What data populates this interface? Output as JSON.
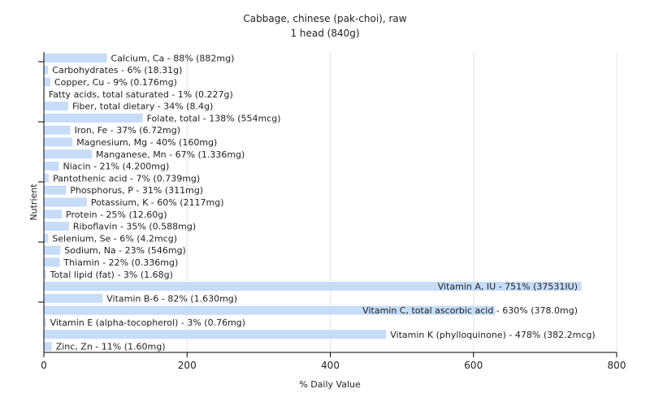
{
  "chart_data": {
    "type": "bar",
    "orientation": "horizontal",
    "title": "Cabbage, chinese (pak-choi), raw",
    "subtitle": "1 head (840g)",
    "xlabel": "% Daily Value",
    "ylabel": "Nutrient",
    "xlim": [
      0,
      800
    ],
    "xticks": [
      0,
      200,
      400,
      600,
      800
    ],
    "grid": true,
    "bar_color": "#c6dcf7",
    "categories": [
      "Calcium, Ca",
      "Carbohydrates",
      "Copper, Cu",
      "Fatty acids, total saturated",
      "Fiber, total dietary",
      "Folate, total",
      "Iron, Fe",
      "Magnesium, Mg",
      "Manganese, Mn",
      "Niacin",
      "Pantothenic acid",
      "Phosphorus, P",
      "Potassium, K",
      "Protein",
      "Riboflavin",
      "Selenium, Se",
      "Sodium, Na",
      "Thiamin",
      "Total lipid (fat)",
      "Vitamin A, IU",
      "Vitamin B-6",
      "Vitamin C, total ascorbic acid",
      "Vitamin E (alpha-tocopherol)",
      "Vitamin K (phylloquinone)",
      "Zinc, Zn"
    ],
    "values": [
      88,
      6,
      9,
      1,
      34,
      138,
      37,
      40,
      67,
      21,
      7,
      31,
      60,
      25,
      35,
      6,
      23,
      22,
      3,
      751,
      82,
      630,
      3,
      478,
      11
    ],
    "labels": [
      "Calcium, Ca - 88% (882mg)",
      "Carbohydrates - 6% (18.31g)",
      "Copper, Cu - 9% (0.176mg)",
      "Fatty acids, total saturated - 1% (0.227g)",
      "Fiber, total dietary - 34% (8.4g)",
      "Folate, total - 138% (554mcg)",
      "Iron, Fe - 37% (6.72mg)",
      "Magnesium, Mg - 40% (160mg)",
      "Manganese, Mn - 67% (1.336mg)",
      "Niacin - 21% (4.200mg)",
      "Pantothenic acid - 7% (0.739mg)",
      "Phosphorus, P - 31% (311mg)",
      "Potassium, K - 60% (2117mg)",
      "Protein - 25% (12.60g)",
      "Riboflavin - 35% (0.588mg)",
      "Selenium, Se - 6% (4.2mcg)",
      "Sodium, Na - 23% (546mg)",
      "Thiamin - 22% (0.336mg)",
      "Total lipid (fat) - 3% (1.68g)",
      "Vitamin A, IU - 751% (37531IU)",
      "Vitamin B-6 - 82% (1.630mg)",
      "Vitamin C, total ascorbic acid - 630% (378.0mg)",
      "Vitamin E (alpha-tocopherol) - 3% (0.76mg)",
      "Vitamin K (phylloquinone) - 478% (382.2mcg)",
      "Zinc, Zn - 11% (1.60mg)"
    ]
  }
}
